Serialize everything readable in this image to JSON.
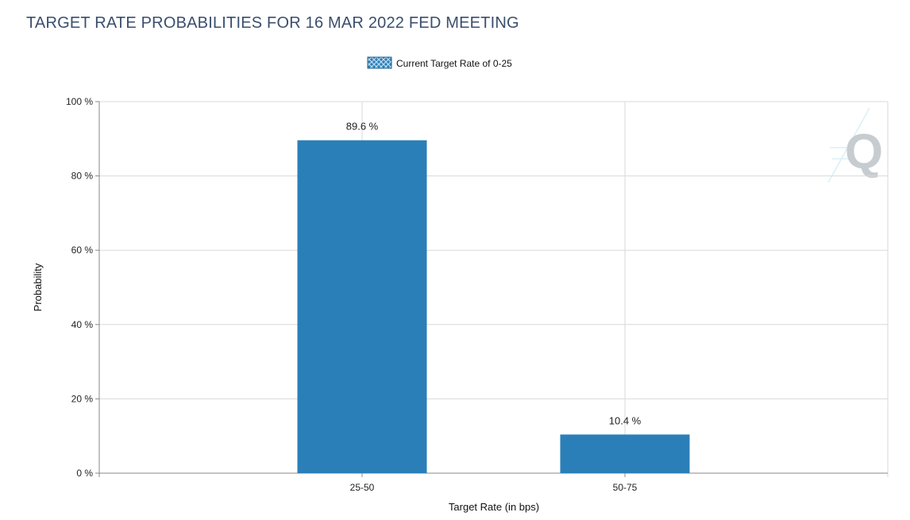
{
  "page": {
    "title": "TARGET RATE PROBABILITIES FOR 16 MAR 2022 FED MEETING"
  },
  "chart_data": {
    "type": "bar",
    "title": "TARGET RATE PROBABILITIES FOR 16 MAR 2022 FED MEETING",
    "xlabel": "Target Rate (in bps)",
    "ylabel": "Probability",
    "categories": [
      "25-50",
      "50-75"
    ],
    "series": [
      {
        "name": "Current Target Rate of 0-25",
        "values": [
          89.6,
          10.4
        ],
        "data_labels": [
          "89.6 %",
          "10.4 %"
        ],
        "color": "#2a7fb8"
      }
    ],
    "ylim": [
      0,
      100
    ],
    "yticks": [
      0,
      20,
      40,
      60,
      80,
      100
    ],
    "ytick_labels": [
      "0 %",
      "20 %",
      "40 %",
      "60 %",
      "80 %",
      "100 %"
    ],
    "grid": true,
    "legend_position": "top-center",
    "watermark": "Q"
  }
}
